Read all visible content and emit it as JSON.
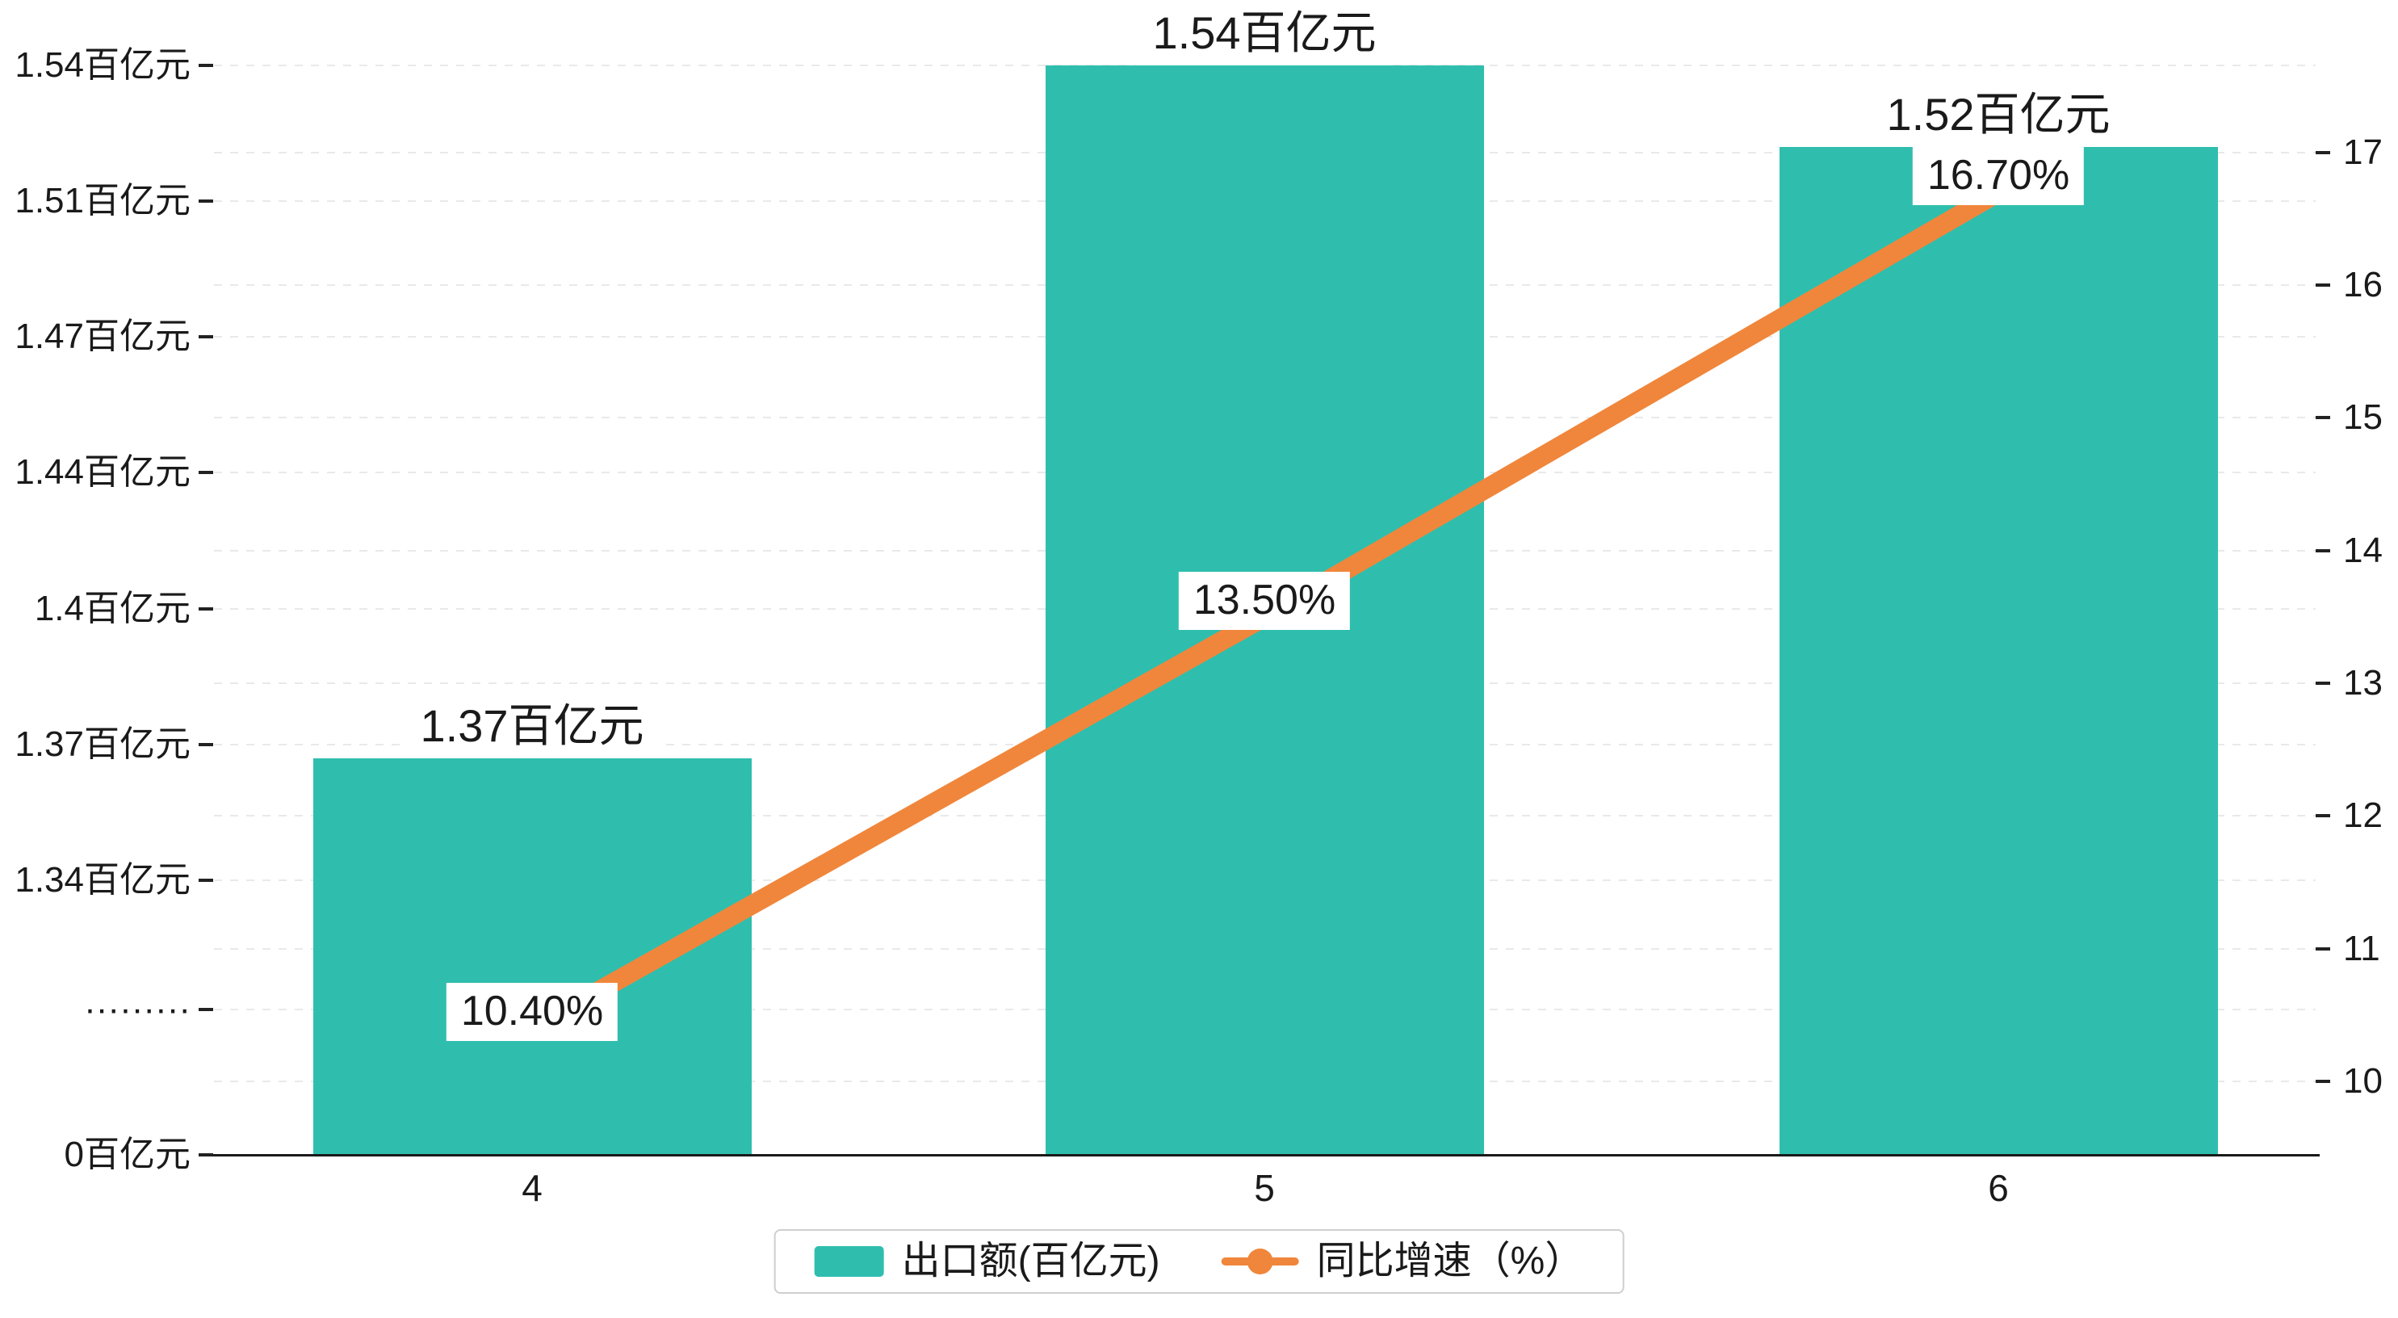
{
  "chart_data": {
    "type": "combo",
    "title": "",
    "categories": [
      "4",
      "5",
      "6"
    ],
    "series": [
      {
        "name": "出口额(百亿元)",
        "type": "bar",
        "color": "#2fbeae",
        "values": [
          1.37,
          1.54,
          1.52
        ],
        "labels": [
          "1.37百亿元",
          "1.54百亿元",
          "1.52百亿元"
        ]
      },
      {
        "name": "同比增速（%）",
        "type": "line",
        "color": "#f0863b",
        "values": [
          10.4,
          13.5,
          16.7
        ],
        "labels": [
          "10.40%",
          "13.50%",
          "16.70%"
        ]
      }
    ],
    "left_axis": {
      "unit": "百亿元",
      "axis_break": true,
      "tick_labels": [
        "1.54百亿元",
        "1.51百亿元",
        "1.47百亿元",
        "1.44百亿元",
        "1.4百亿元",
        "1.37百亿元",
        "1.34百亿元",
        "·········",
        "0百亿元"
      ]
    },
    "right_axis": {
      "range": [
        10,
        17
      ],
      "tick_labels": [
        "17",
        "16",
        "15",
        "14",
        "13",
        "12",
        "11",
        "10"
      ]
    },
    "legend": {
      "position": "bottom",
      "items": [
        "出口额(百亿元)",
        "同比增速（%）"
      ]
    },
    "grid": {
      "horizontal": true,
      "style": "dashed"
    }
  }
}
